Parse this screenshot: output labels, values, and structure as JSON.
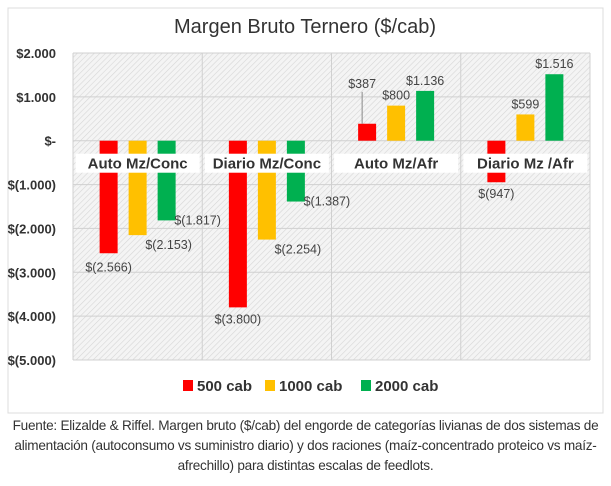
{
  "chart_data": {
    "type": "bar",
    "title": "Margen Bruto Ternero ($/cab)",
    "xlabel": "",
    "ylabel": "",
    "ylim": [
      -5000,
      2000
    ],
    "yticks": [
      2000,
      1000,
      0,
      -1000,
      -2000,
      -3000,
      -4000,
      -5000
    ],
    "ytick_labels": [
      "$2.000",
      "$1.000",
      "$-",
      "$(1.000)",
      "$(2.000)",
      "$(3.000)",
      "$(4.000)",
      "$(5.000)"
    ],
    "categories": [
      "Auto Mz/Conc",
      "Diario Mz/Conc",
      "Auto Mz/Afr",
      "Diario Mz /Afr"
    ],
    "series": [
      {
        "name": "500 cab",
        "color": "#ff0000",
        "values": [
          -2566,
          -3800,
          387,
          -947
        ],
        "labels": [
          "$(2.566)",
          "$(3.800)",
          "$387",
          "$(947)"
        ]
      },
      {
        "name": "1000 cab",
        "color": "#ffc000",
        "values": [
          -2153,
          -2254,
          800,
          599
        ],
        "labels": [
          "$(2.153)",
          "$(2.254)",
          "$800",
          "$599"
        ]
      },
      {
        "name": "2000 cab",
        "color": "#00b050",
        "values": [
          -1817,
          -1387,
          1136,
          1516
        ],
        "labels": [
          "$(1.817)",
          "$(1.387)",
          "$1.136",
          "$1.516"
        ]
      }
    ],
    "grid": true,
    "legend": "bottom"
  },
  "caption": "Fuente: Elizalde & Riffel. Margen bruto ($/cab) del engorde de categorías livianas de dos sistemas de alimentación (autoconsumo vs suministro diario) y dos raciones (maíz-concentrado proteico vs maíz-afrechillo) para distintas escalas de feedlots."
}
